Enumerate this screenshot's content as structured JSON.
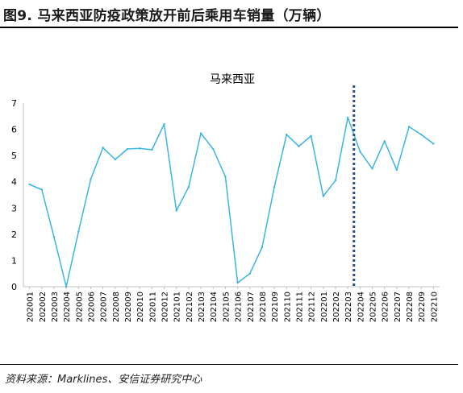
{
  "figure": {
    "title": "图9. 马来西亚防疫政策放开前后乘用车销量（万辆）",
    "source": "资料来源：Marklines、安信证券研究中心"
  },
  "chart_data": {
    "type": "line",
    "title": "马来西亚",
    "xlabel": "",
    "ylabel": "",
    "ylim": [
      0,
      7
    ],
    "yticks": [
      0,
      1,
      2,
      3,
      4,
      5,
      6,
      7
    ],
    "grid": false,
    "legend": "none",
    "line_color": "#3bb5e3",
    "marker_line_color": "#2e4f86",
    "vertical_marker_at": "202204",
    "categories": [
      "202001",
      "202002",
      "202003",
      "202004",
      "202005",
      "202006",
      "202007",
      "202008",
      "202009",
      "202010",
      "202011",
      "202012",
      "202101",
      "202102",
      "202103",
      "202104",
      "202105",
      "202106",
      "202107",
      "202108",
      "202109",
      "202110",
      "202111",
      "202112",
      "202201",
      "202202",
      "202203",
      "202204",
      "202205",
      "202206",
      "202207",
      "202208",
      "202209",
      "202210"
    ],
    "values": [
      3.9,
      3.7,
      1.9,
      0.0,
      2.1,
      4.1,
      5.3,
      4.85,
      5.25,
      5.27,
      5.22,
      6.2,
      2.9,
      3.8,
      5.85,
      5.25,
      4.2,
      0.15,
      0.5,
      1.5,
      3.8,
      5.8,
      5.35,
      5.75,
      3.45,
      4.05,
      6.45,
      5.15,
      4.5,
      5.55,
      4.45,
      6.1,
      5.8,
      5.45
    ]
  }
}
